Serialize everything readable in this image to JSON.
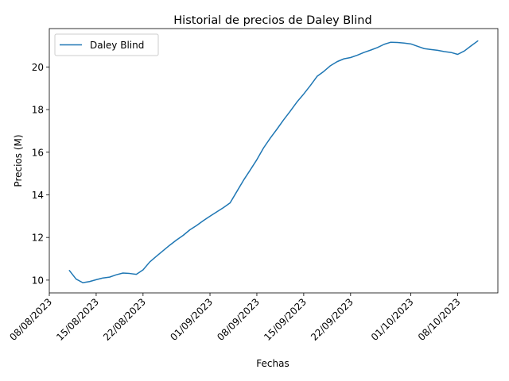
{
  "chart_data": {
    "type": "line",
    "title": "Historial de precios de Daley Blind",
    "xlabel": "Fechas",
    "ylabel": "Precios (M)",
    "x_ticks": [
      "08/08/2023",
      "15/08/2023",
      "22/08/2023",
      "01/09/2023",
      "08/09/2023",
      "15/09/2023",
      "22/09/2023",
      "01/10/2023",
      "08/10/2023"
    ],
    "y_ticks": [
      "10",
      "12",
      "14",
      "16",
      "18",
      "20"
    ],
    "xlim": [
      "08/08/2023",
      "14/10/2023"
    ],
    "ylim": [
      9.4,
      21.8
    ],
    "grid": false,
    "legend_position": "top-left",
    "series": [
      {
        "name": "Daley Blind",
        "color": "#1f77b4",
        "x": [
          "11/08/2023",
          "12/08/2023",
          "13/08/2023",
          "14/08/2023",
          "15/08/2023",
          "16/08/2023",
          "17/08/2023",
          "18/08/2023",
          "19/08/2023",
          "20/08/2023",
          "21/08/2023",
          "22/08/2023",
          "23/08/2023",
          "24/08/2023",
          "25/08/2023",
          "26/08/2023",
          "27/08/2023",
          "28/08/2023",
          "29/08/2023",
          "30/08/2023",
          "31/08/2023",
          "01/09/2023",
          "02/09/2023",
          "03/09/2023",
          "04/09/2023",
          "05/09/2023",
          "06/09/2023",
          "07/09/2023",
          "08/09/2023",
          "09/09/2023",
          "10/09/2023",
          "11/09/2023",
          "12/09/2023",
          "13/09/2023",
          "14/09/2023",
          "15/09/2023",
          "16/09/2023",
          "17/09/2023",
          "18/09/2023",
          "19/09/2023",
          "20/09/2023",
          "21/09/2023",
          "22/09/2023",
          "23/09/2023",
          "24/09/2023",
          "25/09/2023",
          "26/09/2023",
          "27/09/2023",
          "28/09/2023",
          "29/09/2023",
          "30/09/2023",
          "01/10/2023",
          "02/10/2023",
          "03/10/2023",
          "04/10/2023",
          "05/10/2023",
          "06/10/2023",
          "07/10/2023",
          "08/10/2023",
          "09/10/2023",
          "10/10/2023",
          "11/10/2023"
        ],
        "y": [
          10.45,
          10.05,
          9.88,
          9.93,
          10.02,
          10.1,
          10.14,
          10.25,
          10.33,
          10.31,
          10.27,
          10.48,
          10.85,
          11.12,
          11.38,
          11.64,
          11.88,
          12.1,
          12.36,
          12.56,
          12.79,
          13.0,
          13.2,
          13.4,
          13.62,
          14.15,
          14.68,
          15.16,
          15.65,
          16.2,
          16.66,
          17.08,
          17.52,
          17.93,
          18.36,
          18.73,
          19.13,
          19.56,
          19.79,
          20.06,
          20.25,
          20.38,
          20.44,
          20.55,
          20.68,
          20.79,
          20.91,
          21.06,
          21.16,
          21.15,
          21.12,
          21.08,
          20.97,
          20.86,
          20.82,
          20.78,
          20.72,
          20.68,
          20.59,
          20.75,
          20.99,
          21.22
        ]
      }
    ]
  }
}
